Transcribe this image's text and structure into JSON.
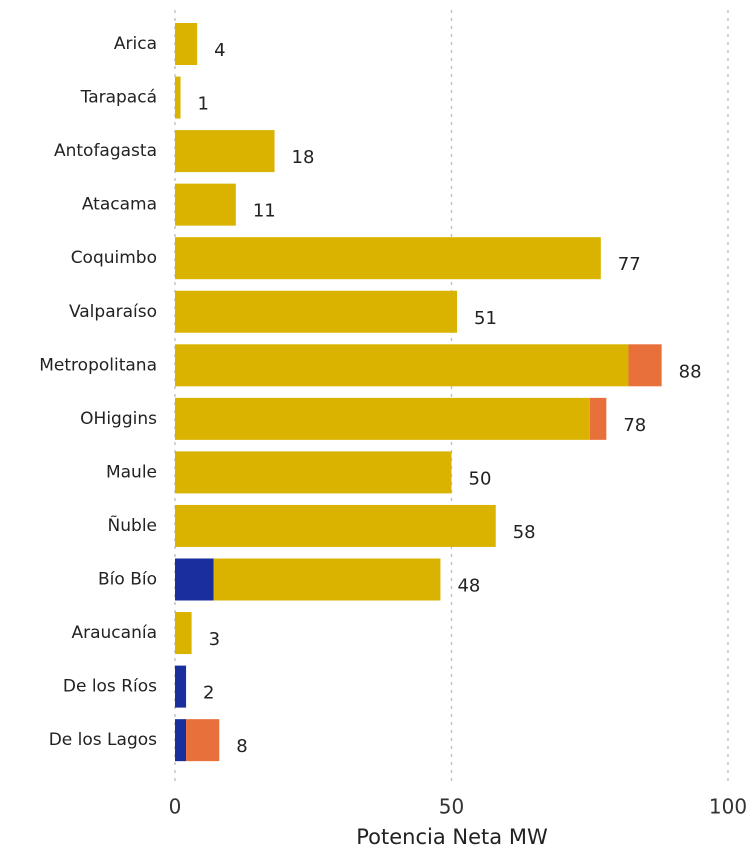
{
  "chart_data": {
    "type": "stacked-bar-horizontal",
    "categories": [
      "Arica",
      "Tarapacá",
      "Antofagasta",
      "Atacama",
      "Coquimbo",
      "Valparaíso",
      "Metropolitana",
      "OHiggins",
      "Maule",
      "Ñuble",
      "Bío Bío",
      "Araucanía",
      "De los Ríos",
      "De los Lagos"
    ],
    "series": [
      {
        "color": "#1a2e9c",
        "values": [
          0,
          0,
          0,
          0,
          0,
          0,
          0,
          0,
          0,
          0,
          7,
          0,
          2,
          2
        ]
      },
      {
        "color": "#d9b300",
        "values": [
          4,
          1,
          18,
          11,
          77,
          51,
          82,
          75,
          50,
          58,
          41,
          3,
          0,
          0
        ]
      },
      {
        "color": "#e8703a",
        "values": [
          0,
          0,
          0,
          0,
          0,
          0,
          6,
          3,
          0,
          0,
          0,
          0,
          0,
          6
        ]
      }
    ],
    "totals": [
      4,
      1,
      18,
      11,
      77,
      51,
      88,
      78,
      50,
      58,
      48,
      3,
      2,
      8
    ],
    "xlabel": "Potencia Neta MW",
    "xlim": [
      0,
      100
    ],
    "xticks": [
      0,
      50,
      100
    ],
    "grid": true
  }
}
